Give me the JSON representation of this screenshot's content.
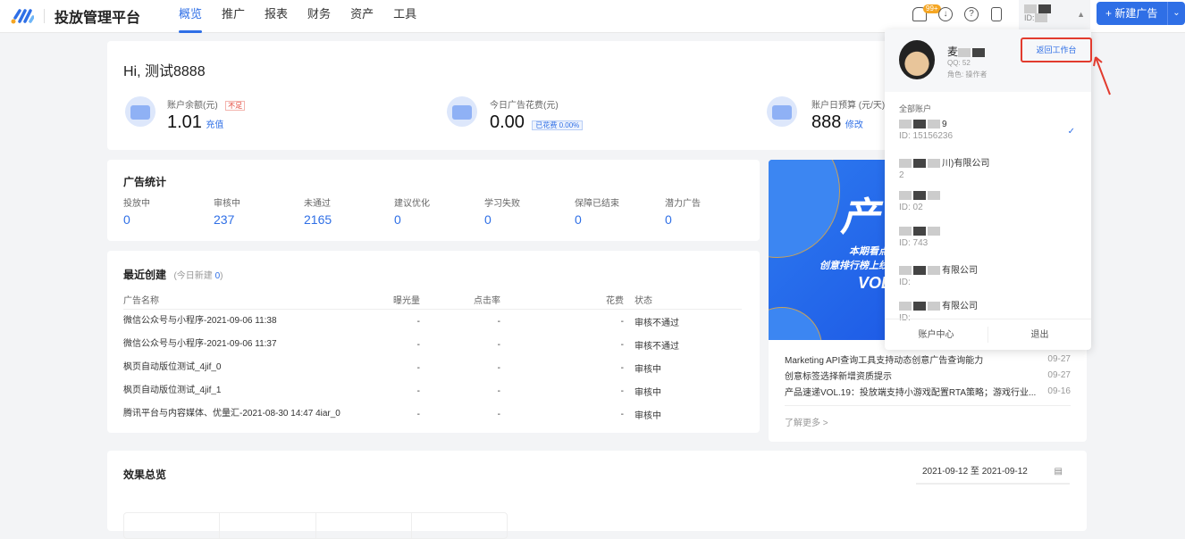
{
  "header": {
    "brand": "投放管理平台",
    "nav": [
      "概览",
      "推广",
      "报表",
      "财务",
      "资产",
      "工具"
    ],
    "active_nav": "概览",
    "badge": "99+",
    "account_short": "ID:",
    "new_ad": "+ 新建广告"
  },
  "overview": {
    "greeting": "Hi, 测试8888",
    "balance": {
      "label": "账户余额(元)",
      "tag": "不足",
      "value": "1.01",
      "action": "充值"
    },
    "spend": {
      "label": "今日广告花费(元)",
      "value": "0.00",
      "tag": "已花费 0.00%"
    },
    "budget": {
      "label": "账户日预算 (元/天)",
      "value": "888",
      "action": "修改"
    }
  },
  "ad_stats": {
    "title": "广告统计",
    "items": [
      {
        "label": "投放中",
        "value": "0"
      },
      {
        "label": "审核中",
        "value": "237"
      },
      {
        "label": "未通过",
        "value": "2165"
      },
      {
        "label": "建议优化",
        "value": "0"
      },
      {
        "label": "学习失败",
        "value": "0"
      },
      {
        "label": "保障已结束",
        "value": "0"
      },
      {
        "label": "潜力广告",
        "value": "0"
      }
    ]
  },
  "recent": {
    "title": "最近创建",
    "sub_prefix": "(今日新建 ",
    "sub_count": "0",
    "sub_suffix": ")",
    "columns": [
      "广告名称",
      "曝光量",
      "点击率",
      "花费",
      "状态"
    ],
    "rows": [
      [
        "微信公众号与小程序-2021-09-06 11:38",
        "-",
        "-",
        "-",
        "审核不通过"
      ],
      [
        "微信公众号与小程序-2021-09-06 11:37",
        "-",
        "-",
        "-",
        "审核不通过"
      ],
      [
        "枫页自动版位测试_4jif_0",
        "-",
        "-",
        "-",
        "审核中"
      ],
      [
        "枫页自动版位测试_4jif_1",
        "-",
        "-",
        "-",
        "审核中"
      ],
      [
        "腾讯平台与内容媒体、优量汇-2021-08-30 14:47 4iar_0",
        "-",
        "-",
        "-",
        "审核中"
      ]
    ]
  },
  "banner": {
    "big": "产",
    "line1": "本期看点",
    "line2": "创意排行榜上线",
    "line3": "VOL"
  },
  "news": {
    "items": [
      {
        "title": "Marketing API查询工具支持动态创意广告查询能力",
        "date": "09-27"
      },
      {
        "title": "创意标签选择新增资质提示",
        "date": "09-27"
      },
      {
        "title": "产品速递VOL.19：投放端支持小游戏配置RTA策略；游戏行业...",
        "date": "09-16"
      }
    ],
    "more": "了解更多 >"
  },
  "effect": {
    "title": "效果总览",
    "date_range": "2021-09-12 至 2021-09-12"
  },
  "dropdown": {
    "user_name": "麦",
    "qq": "QQ: 52",
    "role": "角色: 操作者",
    "back_btn": "返回工作台",
    "section": "全部账户",
    "accounts": [
      {
        "name": "9",
        "id": "ID: 15156236",
        "selected": true
      },
      {
        "name": "川)有限公司",
        "id": "2"
      },
      {
        "name": "",
        "id": "ID: 02"
      },
      {
        "name": "",
        "id": "ID: 743"
      },
      {
        "name": "有限公司",
        "id": "ID:"
      },
      {
        "name": "有限公司",
        "id": "ID:"
      }
    ],
    "account_center": "账户中心",
    "logout": "退出"
  },
  "colors": {
    "primary": "#2f6fe6",
    "highlight": "#e23b2e"
  }
}
